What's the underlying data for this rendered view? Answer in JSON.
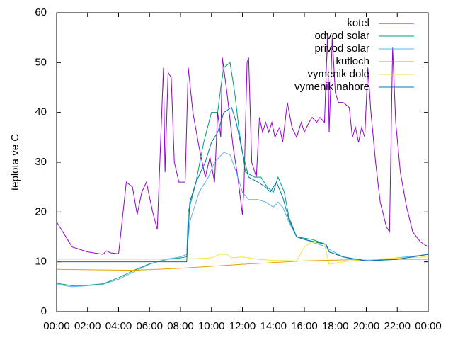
{
  "chart_data": {
    "type": "line",
    "y_label": "teplota ve C",
    "xlim": [
      0,
      24
    ],
    "ylim": [
      0,
      60
    ],
    "xticks": [
      {
        "value": 0,
        "label": "00:00"
      },
      {
        "value": 2,
        "label": "02:00"
      },
      {
        "value": 4,
        "label": "04:00"
      },
      {
        "value": 6,
        "label": "06:00"
      },
      {
        "value": 8,
        "label": "08:00"
      },
      {
        "value": 10,
        "label": "10:00"
      },
      {
        "value": 12,
        "label": "12:00"
      },
      {
        "value": 14,
        "label": "14:00"
      },
      {
        "value": 16,
        "label": "16:00"
      },
      {
        "value": 18,
        "label": "18:00"
      },
      {
        "value": 20,
        "label": "20:00"
      },
      {
        "value": 22,
        "label": "22:00"
      },
      {
        "value": 24,
        "label": "00:00"
      }
    ],
    "yticks": [
      0,
      10,
      20,
      30,
      40,
      50,
      60
    ],
    "legend": "top-right",
    "series": [
      {
        "name": "kotel",
        "color": "#9400d3",
        "x": [
          0,
          1,
          2,
          3,
          3.2,
          3.5,
          4,
          4.5,
          4.9,
          5.2,
          5.5,
          5.8,
          6.2,
          6.5,
          6.9,
          7.0,
          7.2,
          7.4,
          7.6,
          7.9,
          8.3,
          8.5,
          8.8,
          9.2,
          9.6,
          9.9,
          10.2,
          10.4,
          10.6,
          10.7,
          11.0,
          11.4,
          11.7,
          12.0,
          12.1,
          12.3,
          12.4,
          12.6,
          12.9,
          13.1,
          13.3,
          13.5,
          13.7,
          13.9,
          14.1,
          14.4,
          14.6,
          14.9,
          15.2,
          15.5,
          15.8,
          16.0,
          16.3,
          16.5,
          16.8,
          17.0,
          17.3,
          17.5,
          17.6,
          17.8,
          18.0,
          18.2,
          18.5,
          18.9,
          19.1,
          19.3,
          19.5,
          19.7,
          19.9,
          20.1,
          20.3,
          20.6,
          20.9,
          21.3,
          21.5,
          21.7,
          21.9,
          22.2,
          22.6,
          23.0,
          23.5,
          24
        ],
        "values": [
          18,
          13,
          12,
          11.5,
          12.2,
          11.8,
          11.6,
          26,
          25,
          19.5,
          24,
          26,
          20,
          16.5,
          49,
          28,
          48,
          47,
          30,
          26,
          26,
          49,
          40,
          33,
          27,
          31,
          26,
          40,
          35,
          51,
          44,
          33,
          27,
          19.5,
          25,
          50,
          51,
          30,
          27,
          39,
          36,
          38,
          36,
          38,
          35,
          37,
          34,
          42,
          37,
          35,
          38,
          36,
          38,
          39,
          38,
          39,
          38,
          56,
          36,
          55,
          44,
          42,
          42,
          41,
          35,
          37,
          34,
          37,
          35,
          49,
          40,
          30,
          22,
          17,
          16,
          53,
          38,
          28,
          21,
          16,
          14,
          13
        ]
      },
      {
        "name": "odvod solar",
        "color": "#009e73",
        "x": [
          0,
          1,
          2,
          3,
          4,
          5,
          6,
          7,
          8,
          8.4,
          8.5,
          9,
          9.5,
          10,
          10.4,
          10.6,
          10.8,
          11.2,
          11.5,
          11.8,
          12.2,
          12.8,
          13.2,
          13.6,
          14,
          14.3,
          14.7,
          15,
          15.5,
          16.5,
          17.4,
          17.6,
          18.5,
          19.5,
          20,
          22,
          24
        ],
        "values": [
          5.7,
          5.2,
          5.3,
          5.6,
          6.8,
          8.3,
          9.6,
          10.4,
          10.8,
          11,
          20,
          26,
          34,
          40,
          40,
          45,
          49,
          50,
          44,
          36,
          28,
          27,
          27,
          25,
          24,
          27,
          24,
          19,
          15,
          14.5,
          13.5,
          12,
          11,
          10.3,
          10.2,
          10.5,
          11.5
        ]
      },
      {
        "name": "privod solar",
        "color": "#56b4e9",
        "x": [
          0,
          1,
          2,
          3,
          4,
          5,
          6,
          7,
          8,
          8.4,
          8.6,
          9.2,
          9.8,
          10.2,
          10.8,
          11.2,
          11.6,
          12,
          12.4,
          13,
          13.5,
          14,
          14.3,
          14.6,
          15,
          15.5,
          16,
          17.4,
          17.6,
          18.5,
          19.5,
          20.5,
          22,
          24
        ],
        "values": [
          5.5,
          5,
          5.2,
          5.5,
          6.5,
          8,
          9.5,
          10.5,
          11,
          11.5,
          18,
          24,
          27,
          30,
          32,
          31.5,
          28,
          24,
          22.5,
          22.5,
          22,
          21,
          22,
          21,
          18,
          15,
          14.5,
          13,
          12.5,
          11,
          10.4,
          10.2,
          10.8,
          11.5
        ]
      },
      {
        "name": "kutloch",
        "color": "#e69f00",
        "x": [
          0,
          5,
          8,
          12,
          16,
          20,
          24
        ],
        "values": [
          8.5,
          8.3,
          8.7,
          9.5,
          10.2,
          10.5,
          10.5
        ]
      },
      {
        "name": "vymenik dole",
        "color": "#f0e442",
        "x": [
          0,
          8,
          10,
          10.5,
          11,
          11.3,
          12,
          13,
          14,
          15.5,
          16,
          16.5,
          17.3,
          17.6,
          18.5,
          20,
          24
        ],
        "values": [
          10.5,
          10.5,
          10.8,
          11.5,
          11.5,
          10.8,
          11,
          10.5,
          10.3,
          10.2,
          13,
          14,
          13.5,
          9.5,
          10,
          10.5,
          11
        ]
      },
      {
        "name": "vymenik nahore",
        "color": "#0072b2",
        "x": [
          0,
          8.4,
          8.6,
          9,
          9.6,
          10,
          10.4,
          10.8,
          11.3,
          11.6,
          12,
          12.4,
          13,
          13.5,
          13.8,
          14.2,
          14.6,
          15,
          15.5,
          16,
          17.4,
          17.6,
          18.5,
          20,
          22,
          24
        ],
        "values": [
          10,
          10,
          22,
          26,
          30,
          34,
          36,
          40,
          41,
          38,
          32,
          27,
          26,
          25,
          24,
          26,
          23,
          18.5,
          15,
          14.5,
          13.5,
          12,
          11,
          10.2,
          10.5,
          11.5
        ]
      }
    ]
  }
}
